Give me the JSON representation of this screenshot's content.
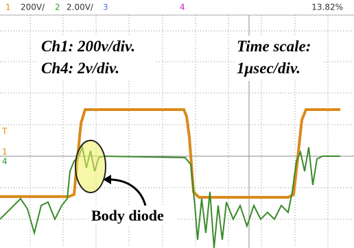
{
  "header": {
    "ch1_label": "1",
    "ch1_scale": "200V/",
    "ch2_label": "2",
    "ch2_scale": "2.00V/",
    "ch3_label": "3",
    "ch4_label": "4",
    "readout": "13.82%"
  },
  "annotations": {
    "ch1_scale_note": "Ch1: 200v/div.",
    "ch4_scale_note": "Ch4: 2v/div.",
    "time_scale_line1": "Time scale:",
    "time_scale_line2": "1μsec/div.",
    "callout": "Body diode"
  },
  "markers": {
    "trigger": "T",
    "ch1": "1",
    "ch4": "4"
  }
}
